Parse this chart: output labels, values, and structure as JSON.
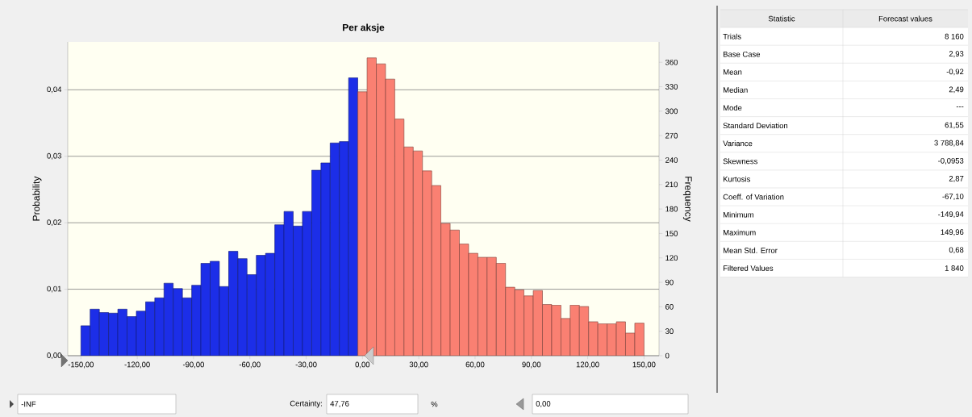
{
  "chart_data": [
    {
      "type": "histogram",
      "title": "Per aksje",
      "ylabel": "Probability",
      "y2label": "Frequency",
      "bins": [
        -150,
        -145.08,
        -140.16,
        -135.25,
        -130.33,
        -125.41,
        -120.49,
        -115.57,
        -110.66,
        -105.74,
        -100.82,
        -95.9,
        -90.98,
        -86.07,
        -81.15,
        -76.23,
        -71.31,
        -66.39,
        -61.48,
        -56.56,
        -51.64,
        -46.72,
        -41.8,
        -36.89,
        -31.97,
        -27.05,
        -22.13,
        -17.21,
        -12.3,
        -7.38,
        -2.46,
        2.46,
        7.38,
        12.3,
        17.21,
        22.13,
        27.05,
        31.97,
        36.89,
        41.8,
        46.72,
        51.64,
        56.56,
        61.48,
        66.39,
        71.31,
        76.23,
        81.15,
        86.07,
        90.98,
        95.9,
        100.82,
        105.74,
        110.66,
        115.57,
        120.49,
        125.41,
        130.33,
        135.25,
        140.16,
        145.08,
        150
      ],
      "values": [
        0.0045,
        0.007,
        0.0065,
        0.0064,
        0.007,
        0.0059,
        0.0067,
        0.0081,
        0.0087,
        0.0109,
        0.0101,
        0.0087,
        0.0106,
        0.0139,
        0.0142,
        0.0104,
        0.0157,
        0.0146,
        0.0122,
        0.0151,
        0.0154,
        0.0197,
        0.0217,
        0.0195,
        0.0217,
        0.0279,
        0.029,
        0.032,
        0.0322,
        0.0418,
        0.0397,
        0.0448,
        0.0439,
        0.0416,
        0.0356,
        0.0314,
        0.0308,
        0.0278,
        0.0256,
        0.0199,
        0.0189,
        0.0168,
        0.0154,
        0.0148,
        0.0148,
        0.0139,
        0.0103,
        0.0099,
        0.009,
        0.0098,
        0.0077,
        0.0076,
        0.0056,
        0.0076,
        0.0074,
        0.0051,
        0.0048,
        0.0048,
        0.0051,
        0.0034,
        0.0049
      ],
      "colors": [
        "#1c2ee8",
        "#1c2ee8",
        "#1c2ee8",
        "#1c2ee8",
        "#1c2ee8",
        "#1c2ee8",
        "#1c2ee8",
        "#1c2ee8",
        "#1c2ee8",
        "#1c2ee8",
        "#1c2ee8",
        "#1c2ee8",
        "#1c2ee8",
        "#1c2ee8",
        "#1c2ee8",
        "#1c2ee8",
        "#1c2ee8",
        "#1c2ee8",
        "#1c2ee8",
        "#1c2ee8",
        "#1c2ee8",
        "#1c2ee8",
        "#1c2ee8",
        "#1c2ee8",
        "#1c2ee8",
        "#1c2ee8",
        "#1c2ee8",
        "#1c2ee8",
        "#1c2ee8",
        "#1c2ee8",
        "#fa8072",
        "#fa8072",
        "#fa8072",
        "#fa8072",
        "#fa8072",
        "#fa8072",
        "#fa8072",
        "#fa8072",
        "#fa8072",
        "#fa8072",
        "#fa8072",
        "#fa8072",
        "#fa8072",
        "#fa8072",
        "#fa8072",
        "#fa8072",
        "#fa8072",
        "#fa8072",
        "#fa8072",
        "#fa8072",
        "#fa8072",
        "#fa8072",
        "#fa8072",
        "#fa8072",
        "#fa8072",
        "#fa8072",
        "#fa8072",
        "#fa8072",
        "#fa8072",
        "#fa8072",
        "#fa8072"
      ],
      "xlim": [
        -157,
        158
      ],
      "ylim": [
        0,
        0.0472
      ],
      "y2lim": [
        0,
        385
      ],
      "xticks": [
        {
          "value": -150,
          "label": "-150,00"
        },
        {
          "value": -120,
          "label": "-120,00"
        },
        {
          "value": -90,
          "label": "-90,00"
        },
        {
          "value": -60,
          "label": "-60,00"
        },
        {
          "value": -30,
          "label": "-30,00"
        },
        {
          "value": 0,
          "label": "0,00"
        },
        {
          "value": 30,
          "label": "30,00"
        },
        {
          "value": 60,
          "label": "60,00"
        },
        {
          "value": 90,
          "label": "90,00"
        },
        {
          "value": 120,
          "label": "120,00"
        },
        {
          "value": 150,
          "label": "150,00"
        }
      ],
      "yticks": [
        {
          "value": 0,
          "label": "0,00"
        },
        {
          "value": 0.01,
          "label": "0,01"
        },
        {
          "value": 0.02,
          "label": "0,02"
        },
        {
          "value": 0.03,
          "label": "0,03"
        },
        {
          "value": 0.04,
          "label": "0,04"
        }
      ],
      "y2ticks": [
        0,
        30,
        60,
        90,
        120,
        150,
        180,
        210,
        240,
        270,
        300,
        330,
        360
      ],
      "grid": "y",
      "annotations": [
        "-INF",
        "Certainty:",
        "47,76",
        "%",
        "0,00"
      ]
    },
    {
      "type": "other",
      "annotations": [
        "Statistic",
        "Forecast values",
        "Trials",
        "8 160",
        "Base Case",
        "2,93",
        "Mean",
        "-0,92",
        "Median",
        "2,49",
        "Mode",
        "---",
        "Standard Deviation",
        "61,55",
        "Variance",
        "3 788,84",
        "Skewness",
        "-0,0953",
        "Kurtosis",
        "2,87",
        "Coeff. of Variation",
        "-67,10",
        "Minimum",
        "-149,94",
        "Maximum",
        "149,96",
        "Mean Std. Error",
        "0,68",
        "Filtered Values",
        "1 840"
      ]
    }
  ]
}
